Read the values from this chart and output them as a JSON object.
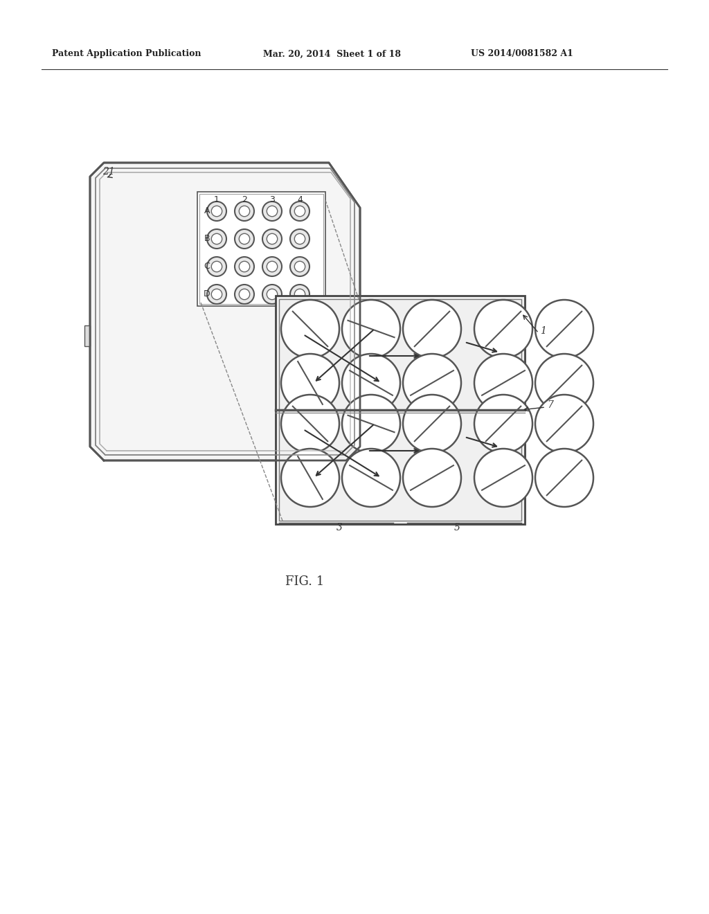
{
  "bg_color": "#ffffff",
  "header_left": "Patent Application Publication",
  "header_mid": "Mar. 20, 2014  Sheet 1 of 18",
  "header_right": "US 2014/0081582 A1",
  "fig_label": "FIG. 1",
  "label_21": "21",
  "label_1": "1",
  "label_7": "7",
  "label_3": "3",
  "label_5": "5",
  "row_labels": [
    "A",
    "B",
    "C",
    "D"
  ],
  "col_labels": [
    "1",
    "2",
    "3",
    "4"
  ]
}
